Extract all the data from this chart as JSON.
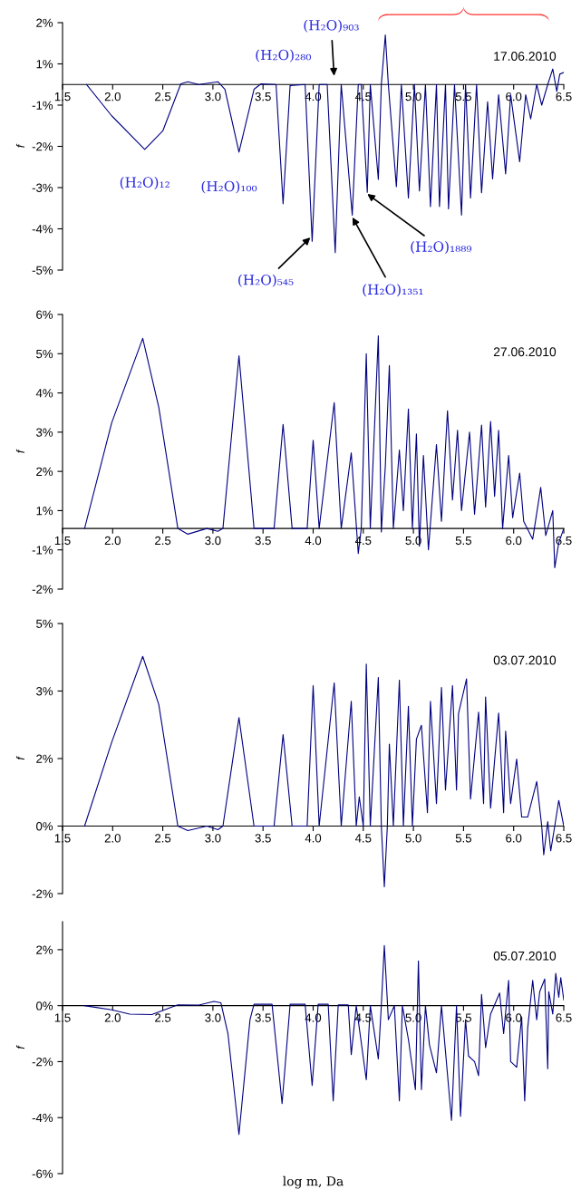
{
  "chart_data": [
    {
      "type": "line",
      "title": "17.06.2010",
      "ylabel": "f",
      "x": [
        1.74,
        1.99,
        2.32,
        2.5,
        2.68,
        2.75,
        2.86,
        3.05,
        3.12,
        3.26,
        3.41,
        3.48,
        3.63,
        3.7,
        3.77,
        3.92,
        3.99,
        4.06,
        4.14,
        4.22,
        4.28,
        4.39,
        4.45,
        4.48,
        4.54,
        4.57,
        4.65,
        4.68,
        4.72,
        4.75,
        4.83,
        4.88,
        4.95,
        5.01,
        5.06,
        5.12,
        5.17,
        5.23,
        5.26,
        5.32,
        5.35,
        5.41,
        5.48,
        5.52,
        5.57,
        5.63,
        5.68,
        5.74,
        5.79,
        5.85,
        5.92,
        5.97,
        6.06,
        6.12,
        6.17,
        6.23,
        6.28,
        6.34,
        6.39,
        6.43,
        6.46,
        6.5
      ],
      "series": [
        {
          "color": "#000080",
          "values": [
            0,
            -0.91,
            -1.89,
            -1.35,
            0.02,
            0.08,
            0,
            0.08,
            -0.14,
            -1.97,
            -0.14,
            0.02,
            0,
            -3.47,
            -0.03,
            0,
            -4.56,
            0,
            0,
            -4.89,
            0,
            -3.8,
            0,
            0,
            -3.14,
            0,
            -2.76,
            0,
            1.44,
            0,
            -2.97,
            0,
            -3.3,
            0,
            -3.1,
            0,
            -3.55,
            0,
            -3.55,
            0,
            -3.62,
            0,
            -3.8,
            0,
            -3.3,
            0,
            -3.15,
            -0.5,
            -2.75,
            -0.3,
            -2.6,
            -0.3,
            -2.25,
            -0.3,
            -1.0,
            0,
            -0.6,
            0,
            0.45,
            -0.2,
            0.3,
            0.35
          ]
        }
      ],
      "xlim": [
        1.5,
        6.5
      ],
      "xticks": [
        {
          "value": 1.5,
          "label": "1.5"
        },
        {
          "value": 2,
          "label": "2.0"
        },
        {
          "value": 2.5,
          "label": "2.5"
        },
        {
          "value": 3,
          "label": "3.0"
        },
        {
          "value": 3.5,
          "label": "3.5"
        },
        {
          "value": 4,
          "label": "4.0"
        },
        {
          "value": 4.5,
          "label": "4.5"
        },
        {
          "value": 5,
          "label": "5.0"
        },
        {
          "value": 5.5,
          "label": "5.5"
        },
        {
          "value": 6,
          "label": "6.0"
        },
        {
          "value": 6.5,
          "label": "6.5"
        }
      ],
      "ylim": [
        -5.4,
        1.8
      ],
      "yticks": [
        {
          "value": 1.8,
          "label": "2%"
        },
        {
          "value": 0.6,
          "label": "1%"
        },
        {
          "value": -0.6,
          "label": "-1%"
        },
        {
          "value": -1.8,
          "label": "-2%"
        },
        {
          "value": -3.0,
          "label": "-3%"
        },
        {
          "value": -4.2,
          "label": "-4%"
        },
        {
          "value": -5.4,
          "label": "-5%"
        }
      ],
      "annotations": [
        {
          "text": "(H₂O)₁₂",
          "x": 2.32,
          "y": -1.89
        },
        {
          "text": "(H₂O)₁₀₀",
          "x": 3.26,
          "y": -1.97
        },
        "(H₂O)₂₈₀",
        "(H₂O)₉₀₃",
        {
          "text": "(H₂O)₅₄₅",
          "x": 3.99,
          "y": -4.4
        },
        {
          "text": "(H₂O)₁₃₅₁",
          "x": 4.38,
          "y": -3.8
        },
        {
          "text": "(H₂O)₁₈₈₉",
          "x": 4.52,
          "y": -3.14
        }
      ]
    },
    {
      "type": "line",
      "title": "27.06.2010",
      "ylabel": "f",
      "x": [
        1.72,
        1.99,
        2.3,
        2.46,
        2.65,
        2.75,
        2.94,
        3.05,
        3.1,
        3.26,
        3.41,
        3.61,
        3.7,
        3.79,
        3.94,
        4.0,
        4.06,
        4.21,
        4.28,
        4.38,
        4.45,
        4.48,
        4.53,
        4.57,
        4.65,
        4.68,
        4.72,
        4.76,
        4.8,
        4.86,
        4.9,
        4.95,
        4.99,
        5.03,
        5.06,
        5.1,
        5.15,
        5.23,
        5.28,
        5.34,
        5.39,
        5.44,
        5.48,
        5.56,
        5.61,
        5.68,
        5.72,
        5.77,
        5.81,
        5.85,
        5.89,
        5.95,
        5.99,
        6.06,
        6.1,
        6.19,
        6.27,
        6.32,
        6.39,
        6.41,
        6.45,
        6.5
      ],
      "series": [
        {
          "color": "#000080",
          "values": [
            0,
            2.96,
            5.33,
            3.4,
            0,
            -0.16,
            0,
            -0.08,
            0,
            4.84,
            0,
            0,
            2.92,
            0,
            0,
            2.47,
            0,
            3.53,
            0,
            2.12,
            -0.7,
            0,
            4.9,
            0,
            5.4,
            -0.1,
            1.75,
            4.57,
            0,
            2.2,
            0.5,
            3.35,
            0,
            2.65,
            -0.5,
            2.05,
            -0.6,
            2.35,
            0.2,
            3.3,
            0.8,
            2.75,
            0.5,
            2.7,
            0.4,
            2.9,
            0.6,
            3.0,
            0.9,
            2.75,
            0,
            2.05,
            0.3,
            1.55,
            0.2,
            -0.3,
            1.15,
            -0.2,
            0.5,
            -1.1,
            -0.4,
            0
          ]
        }
      ],
      "xlim": [
        1.5,
        6.5
      ],
      "xticks": [
        {
          "value": 1.5,
          "label": "1.5"
        },
        {
          "value": 2,
          "label": "2.0"
        },
        {
          "value": 2.5,
          "label": "2.5"
        },
        {
          "value": 3,
          "label": "3.0"
        },
        {
          "value": 3.5,
          "label": "3.5"
        },
        {
          "value": 4,
          "label": "4.0"
        },
        {
          "value": 4.5,
          "label": "4.5"
        },
        {
          "value": 5,
          "label": "5.0"
        },
        {
          "value": 5.5,
          "label": "5.5"
        },
        {
          "value": 6,
          "label": "6.0"
        },
        {
          "value": 6.5,
          "label": "6.5"
        }
      ],
      "ylim": [
        -1.7,
        6.0
      ],
      "yticks": [
        {
          "value": 6.0,
          "label": "6%"
        },
        {
          "value": 4.9,
          "label": "5%"
        },
        {
          "value": 3.8,
          "label": "4%"
        },
        {
          "value": 2.7,
          "label": "3%"
        },
        {
          "value": 1.6,
          "label": "2%"
        },
        {
          "value": 0.5,
          "label": "1%"
        },
        {
          "value": -0.6,
          "label": "-1%"
        },
        {
          "value": -1.7,
          "label": "-2%"
        }
      ]
    },
    {
      "type": "line",
      "title": "03.07.2010",
      "ylabel": "f",
      "x": [
        1.72,
        1.99,
        2.3,
        2.46,
        2.65,
        2.75,
        2.94,
        3.05,
        3.1,
        3.26,
        3.41,
        3.61,
        3.7,
        3.79,
        3.94,
        4.0,
        4.06,
        4.21,
        4.28,
        4.38,
        4.43,
        4.46,
        4.5,
        4.53,
        4.57,
        4.65,
        4.68,
        4.71,
        4.74,
        4.76,
        4.8,
        4.86,
        4.9,
        4.95,
        4.99,
        5.03,
        5.08,
        5.14,
        5.17,
        5.23,
        5.28,
        5.32,
        5.39,
        5.43,
        5.45,
        5.53,
        5.57,
        5.65,
        5.7,
        5.72,
        5.77,
        5.85,
        5.9,
        5.92,
        5.97,
        6.03,
        6.08,
        6.14,
        6.23,
        6.28,
        6.3,
        6.34,
        6.37,
        6.41,
        6.45,
        6.5
      ],
      "series": [
        {
          "color": "#000080",
          "values": [
            0,
            1.86,
            3.77,
            2.7,
            0,
            -0.1,
            0,
            -0.08,
            0,
            2.41,
            0,
            0,
            2.03,
            0,
            0,
            3.12,
            0,
            3.18,
            0,
            2.77,
            0,
            0.65,
            0,
            3.6,
            0,
            3.3,
            0,
            -1.35,
            0,
            1.82,
            0,
            3.24,
            0,
            2.66,
            0,
            1.93,
            2.24,
            0.3,
            2.77,
            0.5,
            3.08,
            0.8,
            3.12,
            0.8,
            2.5,
            3.27,
            0.6,
            2.53,
            0.5,
            2.87,
            0.4,
            2.51,
            0.3,
            2.11,
            0.5,
            1.49,
            0.2,
            0.2,
            0.99,
            0,
            -0.64,
            0.1,
            -0.55,
            0,
            0.57,
            0
          ]
        }
      ],
      "xlim": [
        1.5,
        6.5
      ],
      "xticks": [
        {
          "value": 1.5,
          "label": "1.5"
        },
        {
          "value": 2,
          "label": "2.0"
        },
        {
          "value": 2.5,
          "label": "2.5"
        },
        {
          "value": 3,
          "label": "3.0"
        },
        {
          "value": 3.5,
          "label": "3.5"
        },
        {
          "value": 4,
          "label": "4.0"
        },
        {
          "value": 4.5,
          "label": "4.5"
        },
        {
          "value": 5,
          "label": "5.0"
        },
        {
          "value": 5.5,
          "label": "5.5"
        },
        {
          "value": 6,
          "label": "6.0"
        },
        {
          "value": 6.5,
          "label": "6.5"
        }
      ],
      "ylim": [
        -1.5,
        4.5
      ],
      "yticks": [
        {
          "value": 4.5,
          "label": "5%"
        },
        {
          "value": 3.0,
          "label": "3%"
        },
        {
          "value": 1.5,
          "label": "2%"
        },
        {
          "value": 0,
          "label": "0%"
        },
        {
          "value": -1.5,
          "label": "-2%"
        }
      ]
    },
    {
      "type": "line",
      "title": "05.07.2010",
      "ylabel": "f",
      "xlabel": "log m, Da",
      "x": [
        1.72,
        1.99,
        2.17,
        2.39,
        2.65,
        2.86,
        3.01,
        3.08,
        3.15,
        3.26,
        3.37,
        3.41,
        3.59,
        3.69,
        3.77,
        3.92,
        3.99,
        4.05,
        4.15,
        4.2,
        4.25,
        4.35,
        4.38,
        4.43,
        4.53,
        4.57,
        4.65,
        4.68,
        4.71,
        4.75,
        4.81,
        4.86,
        4.89,
        4.95,
        5.02,
        5.05,
        5.08,
        5.12,
        5.16,
        5.23,
        5.28,
        5.38,
        5.43,
        5.47,
        5.52,
        5.55,
        5.61,
        5.65,
        5.68,
        5.72,
        5.77,
        5.86,
        5.9,
        5.95,
        5.97,
        6.03,
        6.08,
        6.11,
        6.14,
        6.19,
        6.23,
        6.26,
        6.31,
        6.34,
        6.35,
        6.39,
        6.42,
        6.45,
        6.47,
        6.5
      ],
      "series": [
        {
          "color": "#000080",
          "values": [
            0,
            -0.15,
            -0.3,
            -0.32,
            0.03,
            0.02,
            0.15,
            0.1,
            -1.0,
            -4.6,
            -0.5,
            0.05,
            0.05,
            -3.5,
            0.05,
            0.05,
            -2.85,
            0.05,
            0.05,
            -3.4,
            0.03,
            0.03,
            -1.75,
            0,
            -2.65,
            0,
            -1.9,
            0,
            2.15,
            -0.5,
            0,
            -3.4,
            0,
            -1.2,
            -3.0,
            1.6,
            -3.0,
            0,
            -1.4,
            -2.4,
            0,
            -4.1,
            0,
            -3.95,
            -0.5,
            -1.8,
            -2.0,
            -2.5,
            0.4,
            -1.5,
            -0.3,
            0.45,
            -1.0,
            0.9,
            -2.0,
            -2.2,
            -0.4,
            -3.4,
            -0.8,
            0.9,
            -0.5,
            0.5,
            0.95,
            -2.25,
            0.5,
            -0.3,
            1.15,
            0.3,
            1.0,
            0.2
          ]
        }
      ],
      "xlim": [
        1.5,
        6.5
      ],
      "xticks": [
        {
          "value": 1.5,
          "label": "1.5"
        },
        {
          "value": 2,
          "label": "2.0"
        },
        {
          "value": 2.5,
          "label": "2.5"
        },
        {
          "value": 3,
          "label": "3.0"
        },
        {
          "value": 3.5,
          "label": "3.5"
        },
        {
          "value": 4,
          "label": "4.0"
        },
        {
          "value": 4.5,
          "label": "4.5"
        },
        {
          "value": 5,
          "label": "5.0"
        },
        {
          "value": 5.5,
          "label": "5.5"
        },
        {
          "value": 6,
          "label": "6.0"
        },
        {
          "value": 6.5,
          "label": "6.5"
        }
      ],
      "ylim": [
        -6,
        3
      ],
      "yticks": [
        {
          "value": 2,
          "label": "2%"
        },
        {
          "value": 0,
          "label": "0%"
        },
        {
          "value": -2,
          "label": "-2%"
        },
        {
          "value": -4,
          "label": "-4%"
        },
        {
          "value": -6,
          "label": "-6%"
        }
      ]
    }
  ]
}
